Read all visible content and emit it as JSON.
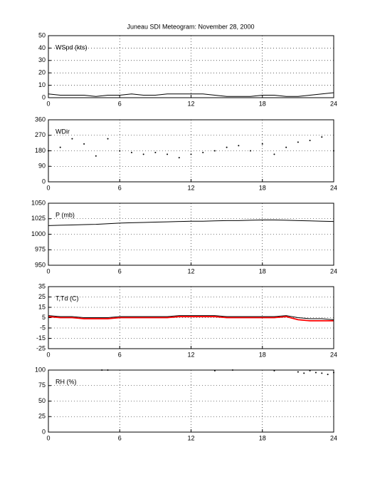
{
  "title": "Juneau SDI Meteogram:  November 28, 2000",
  "chart_data": [
    {
      "type": "line",
      "ylabel": "WSpd (kts)",
      "x": [
        0,
        1,
        2,
        3,
        4,
        5,
        6,
        7,
        8,
        9,
        10,
        11,
        12,
        13,
        14,
        15,
        16,
        17,
        18,
        19,
        20,
        21,
        22,
        23,
        24
      ],
      "series": [
        {
          "color": "#000000",
          "values": [
            3,
            2,
            2,
            2,
            1,
            2,
            2,
            3,
            2,
            2,
            3,
            3,
            3,
            3,
            2,
            1,
            1,
            1,
            2,
            2,
            1,
            1,
            2,
            3,
            4
          ]
        }
      ],
      "xlim": [
        0,
        24
      ],
      "xticks": [
        0,
        6,
        12,
        18,
        24
      ],
      "ylim": [
        0,
        50
      ],
      "yticks": [
        0,
        10,
        20,
        30,
        40,
        50
      ],
      "grid": true
    },
    {
      "type": "scatter",
      "ylabel": "WDir",
      "x": [
        0,
        1,
        2,
        3,
        4,
        5,
        6,
        7,
        8,
        9,
        10,
        11,
        12,
        13,
        14,
        15,
        16,
        17,
        18,
        19,
        20,
        21,
        22,
        23,
        24
      ],
      "series": [
        {
          "color": "#000000",
          "values": [
            180,
            200,
            250,
            220,
            150,
            250,
            180,
            170,
            160,
            170,
            160,
            140,
            160,
            170,
            180,
            200,
            210,
            180,
            220,
            160,
            200,
            230,
            240,
            260,
            180
          ]
        }
      ],
      "xlim": [
        0,
        24
      ],
      "xticks": [
        0,
        6,
        12,
        18,
        24
      ],
      "ylim": [
        0,
        360
      ],
      "yticks": [
        0,
        90,
        180,
        270,
        360
      ],
      "grid": true
    },
    {
      "type": "line",
      "ylabel": "P (mb)",
      "x": [
        0,
        1,
        2,
        3,
        4,
        5,
        6,
        7,
        8,
        9,
        10,
        11,
        12,
        13,
        14,
        15,
        16,
        17,
        18,
        19,
        20,
        21,
        22,
        23,
        24
      ],
      "series": [
        {
          "color": "#000000",
          "values": [
            1014,
            1014.5,
            1015,
            1015.5,
            1016,
            1017,
            1018,
            1018.5,
            1019,
            1019.5,
            1020,
            1020.5,
            1021,
            1021,
            1021.5,
            1022,
            1022,
            1022.5,
            1023,
            1023,
            1022.5,
            1022,
            1021.5,
            1021,
            1020.5
          ]
        }
      ],
      "xlim": [
        0,
        24
      ],
      "xticks": [
        0,
        6,
        12,
        18,
        24
      ],
      "ylim": [
        950,
        1050
      ],
      "yticks": [
        950,
        975,
        1000,
        1025,
        1050
      ],
      "grid": true
    },
    {
      "type": "line",
      "ylabel": "T,Td (C)",
      "x": [
        0,
        1,
        2,
        3,
        4,
        5,
        6,
        7,
        8,
        9,
        10,
        11,
        12,
        13,
        14,
        15,
        16,
        17,
        18,
        19,
        20,
        21,
        22,
        23,
        24
      ],
      "series": [
        {
          "color": "#000000",
          "values": [
            7,
            6,
            6,
            5,
            5,
            5,
            6,
            6,
            6,
            6,
            6,
            7,
            7,
            7,
            7,
            6,
            6,
            6,
            6,
            6,
            7,
            5,
            4,
            4,
            3
          ]
        },
        {
          "color": "#ff0000",
          "values": [
            6,
            5,
            5,
            4,
            4,
            4,
            5,
            5,
            5,
            5,
            5,
            6,
            6,
            6,
            6,
            5,
            5,
            5,
            5,
            5,
            6,
            3,
            2,
            2,
            2
          ]
        }
      ],
      "xlim": [
        0,
        24
      ],
      "xticks": [
        0,
        6,
        12,
        18,
        24
      ],
      "ylim": [
        -25,
        35
      ],
      "yticks": [
        -25,
        -15,
        -5,
        5,
        15,
        25,
        35
      ],
      "grid": true
    },
    {
      "type": "scatter",
      "ylabel": "RH (%)",
      "x": [
        4.5,
        5,
        14,
        15.5,
        19,
        21,
        21.5,
        22,
        22.5,
        23,
        23.5,
        24
      ],
      "series": [
        {
          "color": "#000000",
          "values": [
            100,
            100,
            99,
            100,
            99,
            97,
            95,
            99,
            96,
            95,
            93,
            96
          ]
        }
      ],
      "xlim": [
        0,
        24
      ],
      "xticks": [
        0,
        6,
        12,
        18,
        24
      ],
      "ylim": [
        0,
        100
      ],
      "yticks": [
        0,
        25,
        50,
        75,
        100
      ],
      "grid": true
    }
  ]
}
